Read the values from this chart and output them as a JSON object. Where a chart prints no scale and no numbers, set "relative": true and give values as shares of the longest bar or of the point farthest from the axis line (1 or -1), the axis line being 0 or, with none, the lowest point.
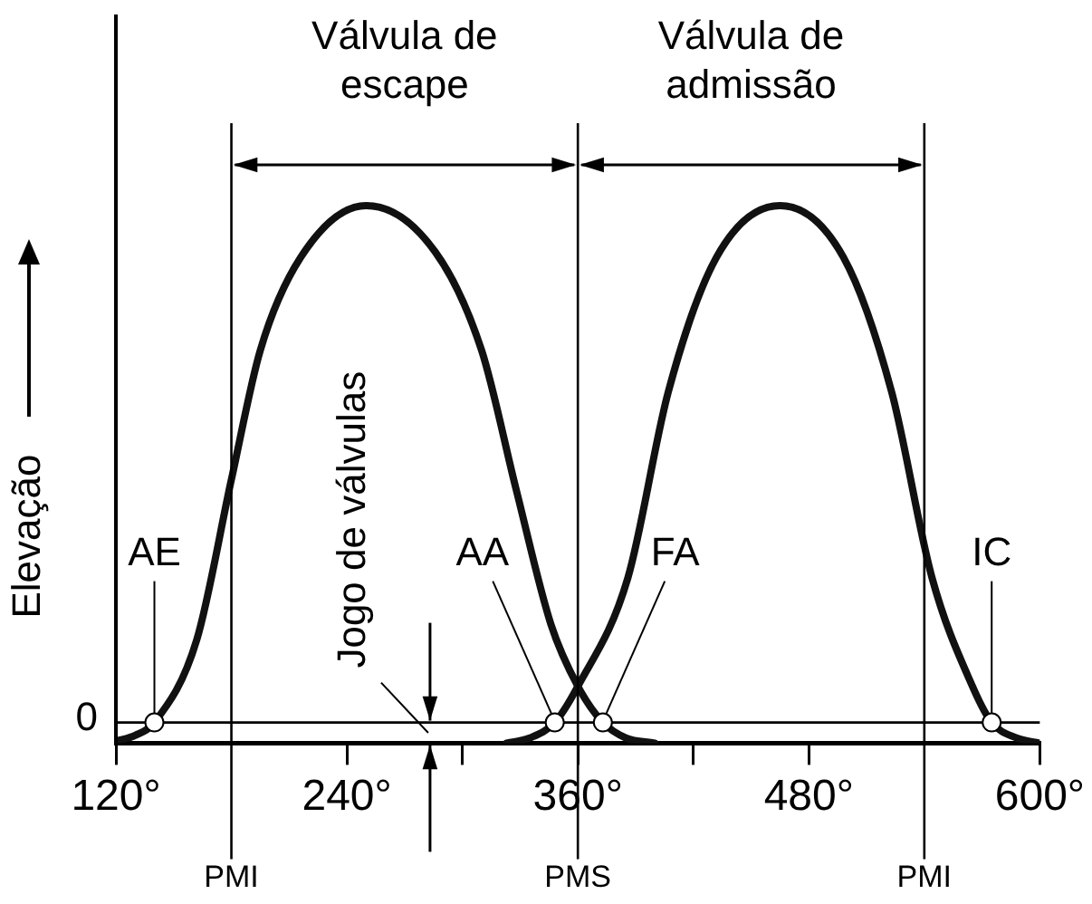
{
  "chart_data": {
    "type": "line",
    "relative": true,
    "ylabel": "Elevação",
    "marker": "none",
    "legend": false,
    "grid": false,
    "xlim": [
      120,
      600
    ],
    "xticks": [
      {
        "value": 120,
        "label": "120°"
      },
      {
        "value": 240,
        "label": "240°"
      },
      {
        "value": 300,
        "label": null
      },
      {
        "value": 360,
        "label": "360°"
      },
      {
        "value": 420,
        "label": null
      },
      {
        "value": 480,
        "label": "480°"
      },
      {
        "value": 600,
        "label": "600°"
      }
    ],
    "series": [
      {
        "color": "#111111",
        "x": [
          120,
          130,
          140,
          162,
          180,
          195,
          216,
          250,
          286,
          310,
          328,
          346,
          360,
          373,
          385,
          400
        ],
        "values": [
          -0.036,
          -0.025,
          0,
          0.16,
          0.47,
          0.72,
          0.9,
          1,
          0.91,
          0.72,
          0.45,
          0.19,
          0.07,
          0,
          -0.03,
          -0.04
        ]
      },
      {
        "color": "#111111",
        "x": [
          323,
          335,
          348,
          360,
          386,
          407,
          432,
          465,
          498,
          523,
          544,
          565,
          575,
          588,
          600
        ],
        "values": [
          -0.04,
          -0.03,
          0,
          0.07,
          0.28,
          0.64,
          0.9,
          1,
          0.9,
          0.64,
          0.28,
          0.07,
          0,
          -0.03,
          -0.04
        ]
      }
    ],
    "ref_lines": [
      {
        "axis": "y",
        "value": 0,
        "label": "0"
      },
      {
        "axis": "x",
        "value": 180,
        "label": "PMI"
      },
      {
        "axis": "x",
        "value": 360,
        "label": "PMS"
      },
      {
        "axis": "x",
        "value": 540,
        "label": "PMI"
      }
    ],
    "annotations": [
      "Válvula de escape",
      "Válvula de admissão",
      "Jogo de válvulas",
      {
        "text": "AE",
        "x": 140,
        "y": 0
      },
      {
        "text": "AA",
        "x": 348,
        "y": 0
      },
      {
        "text": "FA",
        "x": 373,
        "y": 0
      },
      {
        "text": "IC",
        "x": 575,
        "y": 0
      }
    ]
  }
}
